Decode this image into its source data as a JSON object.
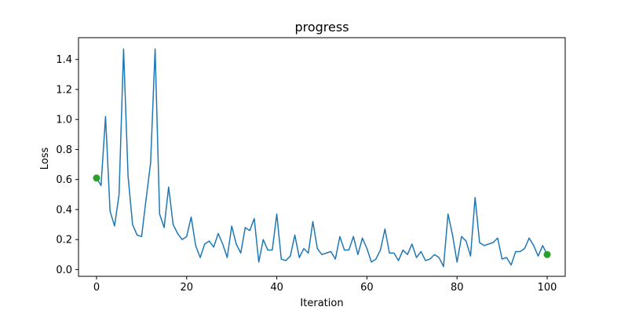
{
  "chart_data": {
    "type": "line",
    "title": "progress",
    "xlabel": "Iteration",
    "ylabel": "Loss",
    "xlim": [
      -4,
      104
    ],
    "ylim": [
      -0.045,
      1.545
    ],
    "xticks": [
      0,
      20,
      40,
      60,
      80,
      100
    ],
    "yticks": [
      0.0,
      0.2,
      0.4,
      0.6,
      0.8,
      1.0,
      1.2,
      1.4
    ],
    "grid": false,
    "series": [
      {
        "color": "#1f77b4",
        "x": [
          0,
          1,
          2,
          3,
          4,
          5,
          6,
          7,
          8,
          9,
          10,
          11,
          12,
          13,
          14,
          15,
          16,
          17,
          18,
          19,
          20,
          21,
          22,
          23,
          24,
          25,
          26,
          27,
          28,
          29,
          30,
          31,
          32,
          33,
          34,
          35,
          36,
          37,
          38,
          39,
          40,
          41,
          42,
          43,
          44,
          45,
          46,
          47,
          48,
          49,
          50,
          51,
          52,
          53,
          54,
          55,
          56,
          57,
          58,
          59,
          60,
          61,
          62,
          63,
          64,
          65,
          66,
          67,
          68,
          69,
          70,
          71,
          72,
          73,
          74,
          75,
          76,
          77,
          78,
          79,
          80,
          81,
          82,
          83,
          84,
          85,
          86,
          87,
          88,
          89,
          90,
          91,
          92,
          93,
          94,
          95,
          96,
          97,
          98,
          99,
          100
        ],
        "y": [
          0.61,
          0.56,
          1.02,
          0.39,
          0.29,
          0.5,
          1.47,
          0.62,
          0.3,
          0.23,
          0.22,
          0.47,
          0.71,
          1.47,
          0.37,
          0.28,
          0.55,
          0.3,
          0.24,
          0.2,
          0.22,
          0.35,
          0.16,
          0.08,
          0.17,
          0.19,
          0.15,
          0.24,
          0.17,
          0.08,
          0.29,
          0.17,
          0.11,
          0.28,
          0.26,
          0.34,
          0.05,
          0.2,
          0.13,
          0.13,
          0.37,
          0.07,
          0.06,
          0.09,
          0.23,
          0.08,
          0.14,
          0.11,
          0.32,
          0.14,
          0.1,
          0.11,
          0.12,
          0.07,
          0.22,
          0.13,
          0.13,
          0.22,
          0.1,
          0.21,
          0.14,
          0.05,
          0.07,
          0.13,
          0.27,
          0.11,
          0.11,
          0.06,
          0.13,
          0.1,
          0.17,
          0.08,
          0.12,
          0.06,
          0.07,
          0.1,
          0.08,
          0.02,
          0.37,
          0.23,
          0.05,
          0.22,
          0.19,
          0.09,
          0.48,
          0.18,
          0.16,
          0.17,
          0.18,
          0.21,
          0.07,
          0.08,
          0.03,
          0.12,
          0.12,
          0.14,
          0.21,
          0.16,
          0.09,
          0.16,
          0.1
        ]
      }
    ],
    "markers": [
      {
        "x": 0,
        "y": 0.61,
        "color": "#2ca02c"
      },
      {
        "x": 100,
        "y": 0.1,
        "color": "#2ca02c"
      }
    ]
  }
}
